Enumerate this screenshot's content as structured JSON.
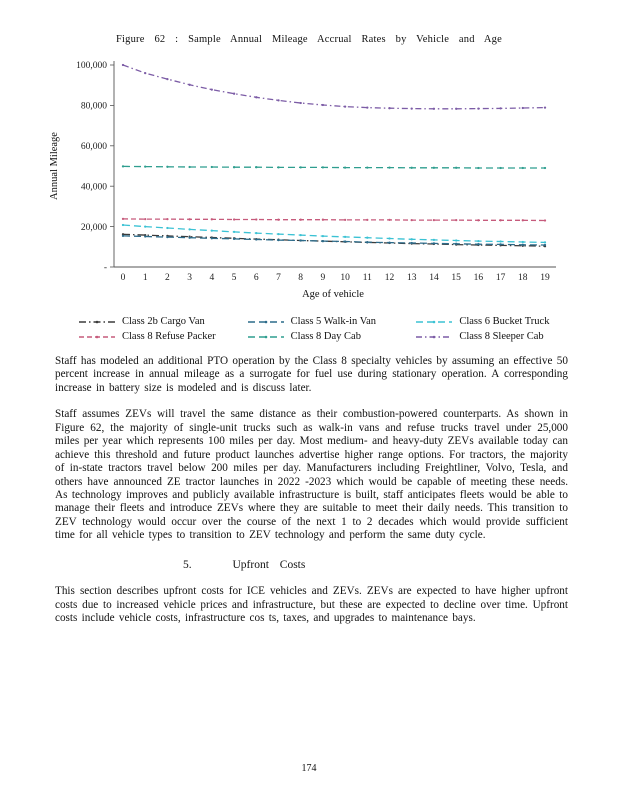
{
  "page": {
    "figure_title": "Figure 62 : Sample Annual Mileage Accrual Rates by Vehicle and Age",
    "page_number": "174"
  },
  "chart_data": {
    "type": "line",
    "title": "Figure 62: Sample Annual Mileage Accrual Rates by Vehicle and Age",
    "xlabel": "Age of vehicle",
    "ylabel": "Annual Mileage",
    "legend_position": "bottom",
    "grid": false,
    "ylim": [
      0,
      100000
    ],
    "ytick_values": [
      0,
      20000,
      40000,
      60000,
      80000,
      100000
    ],
    "ytick_labels": [
      "-",
      "20,000",
      "40,000",
      "60,000",
      "80,000",
      "100,000"
    ],
    "x": [
      0,
      1,
      2,
      3,
      4,
      5,
      6,
      7,
      8,
      9,
      10,
      11,
      12,
      13,
      14,
      15,
      16,
      17,
      18,
      19
    ],
    "series": [
      {
        "name": "Class 2b Cargo Van",
        "color": "#3b3b3b",
        "dash": "7 3 1.5 3",
        "values": [
          16200,
          15800,
          15400,
          15000,
          14600,
          14200,
          13800,
          13500,
          13100,
          12800,
          12500,
          12200,
          11900,
          11600,
          11400,
          11100,
          10900,
          10700,
          10500,
          10300
        ]
      },
      {
        "name": "Class 5 Walk-in Van",
        "color": "#2c6b8a",
        "dash": "7 4",
        "values": [
          15400,
          15100,
          14800,
          14500,
          14200,
          13900,
          13600,
          13300,
          13100,
          12800,
          12600,
          12300,
          12100,
          11900,
          11700,
          11500,
          11300,
          11200,
          11000,
          10900
        ]
      },
      {
        "name": "Class 6 Bucket Truck",
        "color": "#3bc2d4",
        "dash": "7 4",
        "values": [
          20800,
          20000,
          19300,
          18600,
          18000,
          17400,
          16800,
          16300,
          15800,
          15300,
          14900,
          14500,
          14100,
          13700,
          13400,
          13100,
          12800,
          12600,
          12400,
          12200
        ]
      },
      {
        "name": "Class 8 Refuse Packer",
        "color": "#c65b7c",
        "dash": "5 3",
        "values": [
          23800,
          23700,
          23700,
          23600,
          23600,
          23500,
          23500,
          23400,
          23400,
          23400,
          23300,
          23300,
          23300,
          23200,
          23200,
          23200,
          23100,
          23100,
          23100,
          23000
        ]
      },
      {
        "name": "Class 8 Day Cab",
        "color": "#2f9e8f",
        "dash": "7 4",
        "values": [
          49800,
          49700,
          49600,
          49500,
          49500,
          49400,
          49400,
          49300,
          49300,
          49300,
          49200,
          49200,
          49200,
          49100,
          49100,
          49100,
          49000,
          49000,
          49000,
          49000
        ]
      },
      {
        "name": "Class 8 Sleeper Cab",
        "color": "#7c5ca6",
        "dash": "6 3 1.5 3",
        "values": [
          100000,
          96000,
          93000,
          90200,
          87800,
          85800,
          84000,
          82500,
          81200,
          80200,
          79400,
          78900,
          78600,
          78400,
          78300,
          78300,
          78400,
          78500,
          78700,
          78900
        ]
      }
    ]
  },
  "text": {
    "p1": "Staff has modeled an additional PTO operation by the Class 8 specialty vehicles by assuming an effective 50 percent increase in annual mileage as a surrogate for fuel use during stationary operation. A corresponding increase in battery size is modeled and is discuss later.",
    "p2": "Staff assumes ZEVs will travel the same distance as their combustion-powered counterparts. As shown in Figure 62, the majority of single-unit trucks such as walk-in vans and refuse trucks travel under 25,000 miles per year which represents 100 miles per day. Most medium- and heavy-duty ZEVs available today can achieve this threshold and future product launches advertise higher range options. For tractors, the majority of in-state tractors travel below 200 miles per day. Manufacturers including Freightliner, Volvo, Tesla, and others have announced ZE tractor launches in 2022 -2023 which would be capable of meeting these needs. As technology improves and publicly available infrastructure is built, staff anticipates fleets would be able to manage their fleets and introduce ZEVs where they are suitable to meet their daily needs. This transition to ZEV technology would occur over the course of the next 1 to 2 decades which would provide sufficient time for all vehicle types to transition to ZEV technology and perform the same duty cycle.",
    "heading_number": "5.",
    "heading_text": "Upfront Costs",
    "p3": "This section describes upfront costs for ICE vehicles and ZEVs. ZEVs are expected to have higher upfront costs due to increased vehicle prices and infrastructure, but these are expected to decline over time. Upfront costs include vehicle costs, infrastructure cos ts, taxes, and upgrades to maintenance bays."
  }
}
